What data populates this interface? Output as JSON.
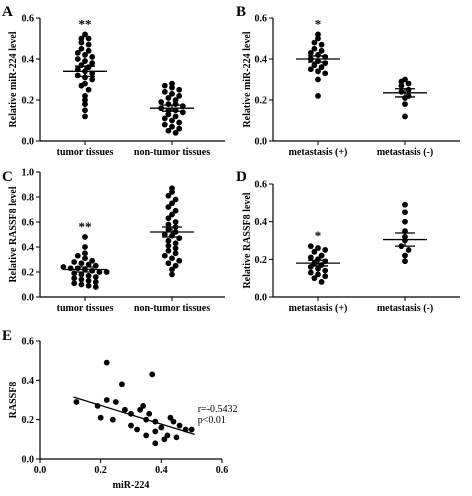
{
  "chart_data": [
    {
      "type": "scatter",
      "panel": "A",
      "ylabel": "Relative miR-224 level",
      "ylim": [
        0,
        0.6
      ],
      "yticks": [
        "0.0",
        "0.2",
        "0.4",
        "0.6"
      ],
      "categories": [
        "tumor tissues",
        "non-tumor tissues"
      ],
      "significance": [
        "**",
        ""
      ],
      "series": [
        {
          "category": "tumor tissues",
          "mean": 0.34,
          "sem_low": 0.315,
          "sem_high": 0.365,
          "values": [
            0.52,
            0.5,
            0.5,
            0.48,
            0.47,
            0.45,
            0.44,
            0.43,
            0.42,
            0.41,
            0.4,
            0.39,
            0.38,
            0.37,
            0.36,
            0.35,
            0.34,
            0.33,
            0.32,
            0.31,
            0.3,
            0.28,
            0.27,
            0.25,
            0.22,
            0.2,
            0.18,
            0.15,
            0.12
          ]
        },
        {
          "category": "non-tumor tissues",
          "mean": 0.16,
          "sem_low": 0.145,
          "sem_high": 0.175,
          "values": [
            0.28,
            0.27,
            0.26,
            0.25,
            0.24,
            0.23,
            0.22,
            0.21,
            0.2,
            0.19,
            0.18,
            0.18,
            0.17,
            0.16,
            0.15,
            0.15,
            0.14,
            0.13,
            0.12,
            0.11,
            0.1,
            0.09,
            0.08,
            0.07,
            0.06,
            0.05,
            0.04
          ]
        }
      ]
    },
    {
      "type": "scatter",
      "panel": "B",
      "ylabel": "Relative miR-224 level",
      "ylim": [
        0,
        0.6
      ],
      "yticks": [
        "0.0",
        "0.2",
        "0.4",
        "0.6"
      ],
      "categories": [
        "metastasis (+)",
        "metastasis (-)"
      ],
      "significance": [
        "*",
        ""
      ],
      "series": [
        {
          "category": "metastasis (+)",
          "mean": 0.4,
          "sem_low": 0.385,
          "sem_high": 0.415,
          "values": [
            0.52,
            0.5,
            0.48,
            0.47,
            0.45,
            0.44,
            0.43,
            0.42,
            0.41,
            0.4,
            0.39,
            0.38,
            0.37,
            0.36,
            0.35,
            0.34,
            0.33,
            0.3,
            0.22
          ]
        },
        {
          "category": "metastasis (-)",
          "mean": 0.235,
          "sem_low": 0.215,
          "sem_high": 0.255,
          "values": [
            0.3,
            0.29,
            0.28,
            0.27,
            0.25,
            0.24,
            0.22,
            0.21,
            0.18,
            0.12
          ]
        }
      ]
    },
    {
      "type": "scatter",
      "panel": "C",
      "ylabel": "Relative RASSF8 level",
      "ylim": [
        0,
        1.0
      ],
      "yticks": [
        "0.0",
        "0.2",
        "0.4",
        "0.6",
        "0.8",
        "1.0"
      ],
      "categories": [
        "tumor tissues",
        "non-tumor tissues"
      ],
      "significance": [
        "**",
        ""
      ],
      "series": [
        {
          "category": "tumor tissues",
          "mean": 0.22,
          "sem_low": 0.2,
          "sem_high": 0.24,
          "values": [
            0.48,
            0.4,
            0.35,
            0.33,
            0.31,
            0.29,
            0.28,
            0.27,
            0.26,
            0.25,
            0.24,
            0.23,
            0.23,
            0.22,
            0.21,
            0.2,
            0.2,
            0.19,
            0.18,
            0.17,
            0.16,
            0.15,
            0.14,
            0.13,
            0.12,
            0.11,
            0.1,
            0.09,
            0.08
          ]
        },
        {
          "category": "non-tumor tissues",
          "mean": 0.52,
          "sem_low": 0.48,
          "sem_high": 0.56,
          "values": [
            0.87,
            0.84,
            0.81,
            0.78,
            0.75,
            0.72,
            0.69,
            0.66,
            0.63,
            0.6,
            0.58,
            0.56,
            0.54,
            0.52,
            0.5,
            0.49,
            0.47,
            0.45,
            0.43,
            0.41,
            0.39,
            0.37,
            0.35,
            0.33,
            0.31,
            0.29,
            0.27,
            0.25,
            0.22,
            0.18
          ]
        }
      ]
    },
    {
      "type": "scatter",
      "panel": "D",
      "ylabel": "Relative RASSF8 level",
      "ylim": [
        0,
        0.6
      ],
      "yticks": [
        "0.0",
        "0.2",
        "0.4",
        "0.6"
      ],
      "categories": [
        "metastasis (+)",
        "metastasis (-)"
      ],
      "significance": [
        "*",
        ""
      ],
      "series": [
        {
          "category": "metastasis (+)",
          "mean": 0.18,
          "sem_low": 0.165,
          "sem_high": 0.195,
          "values": [
            0.27,
            0.26,
            0.25,
            0.24,
            0.22,
            0.21,
            0.2,
            0.19,
            0.18,
            0.17,
            0.16,
            0.15,
            0.14,
            0.13,
            0.12,
            0.11,
            0.1,
            0.08
          ]
        },
        {
          "category": "metastasis (-)",
          "mean": 0.305,
          "sem_low": 0.27,
          "sem_high": 0.34,
          "values": [
            0.49,
            0.45,
            0.4,
            0.35,
            0.32,
            0.3,
            0.27,
            0.25,
            0.22,
            0.19
          ]
        }
      ]
    },
    {
      "type": "scatter",
      "panel": "E",
      "xlabel": "miR-224",
      "ylabel": "RASSF8",
      "xlim": [
        0,
        0.6
      ],
      "ylim": [
        0,
        0.6
      ],
      "xticks": [
        "0.0",
        "0.2",
        "0.4",
        "0.6"
      ],
      "yticks": [
        "0.0",
        "0.2",
        "0.4",
        "0.6"
      ],
      "annotation": [
        "r=-0.5432",
        "p<0.01"
      ],
      "trend_line": {
        "x": [
          0.11,
          0.51
        ],
        "y": [
          0.315,
          0.125
        ]
      },
      "points": [
        [
          0.12,
          0.29
        ],
        [
          0.19,
          0.27
        ],
        [
          0.2,
          0.21
        ],
        [
          0.22,
          0.49
        ],
        [
          0.22,
          0.3
        ],
        [
          0.24,
          0.2
        ],
        [
          0.25,
          0.29
        ],
        [
          0.27,
          0.38
        ],
        [
          0.28,
          0.25
        ],
        [
          0.3,
          0.23
        ],
        [
          0.3,
          0.17
        ],
        [
          0.32,
          0.15
        ],
        [
          0.33,
          0.25
        ],
        [
          0.34,
          0.27
        ],
        [
          0.35,
          0.2
        ],
        [
          0.36,
          0.23
        ],
        [
          0.37,
          0.43
        ],
        [
          0.38,
          0.19
        ],
        [
          0.38,
          0.14
        ],
        [
          0.4,
          0.16
        ],
        [
          0.41,
          0.1
        ],
        [
          0.42,
          0.12
        ],
        [
          0.43,
          0.21
        ],
        [
          0.44,
          0.19
        ],
        [
          0.46,
          0.17
        ],
        [
          0.48,
          0.15
        ],
        [
          0.38,
          0.08
        ],
        [
          0.35,
          0.12
        ],
        [
          0.5,
          0.15
        ],
        [
          0.45,
          0.11
        ]
      ]
    }
  ]
}
